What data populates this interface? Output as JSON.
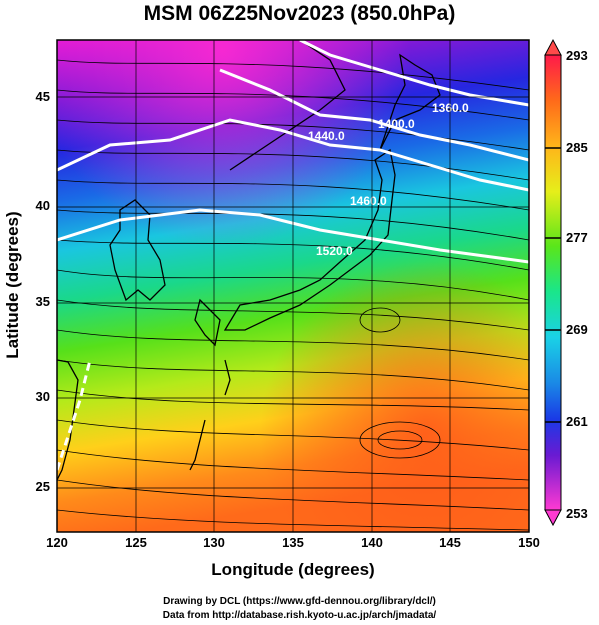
{
  "title": "MSM 06Z25Nov2023 (850.0hPa)",
  "axes": {
    "xlabel": "Longitude (degrees)",
    "ylabel": "Latitude  (degrees)",
    "xticks": [
      "120",
      "125",
      "130",
      "135",
      "140",
      "145",
      "150"
    ],
    "yticks": [
      "25",
      "30",
      "35",
      "40",
      "45"
    ]
  },
  "colorbar": {
    "ticks": [
      "293",
      "285",
      "277",
      "269",
      "261",
      "253"
    ],
    "colors": [
      "#ff1a4a",
      "#ff5a1a",
      "#ff9a1a",
      "#ffd01a",
      "#c8f01a",
      "#5ae61a",
      "#1ae68a",
      "#1ad2e6",
      "#1a8ae6",
      "#1a3ae6",
      "#2a1ad2",
      "#9a1ad2",
      "#e61ae6",
      "#ff3ad2"
    ]
  },
  "contours": [
    "1360.0",
    "1400.0",
    "1440.0",
    "1460.0",
    "1520.0"
  ],
  "credits": {
    "line1": "Drawing by DCL (https://www.gfd-dennou.org/library/dcl/)",
    "line2": "Data from http://database.rish.kyoto-u.ac.jp/arch/jmadata/"
  }
}
